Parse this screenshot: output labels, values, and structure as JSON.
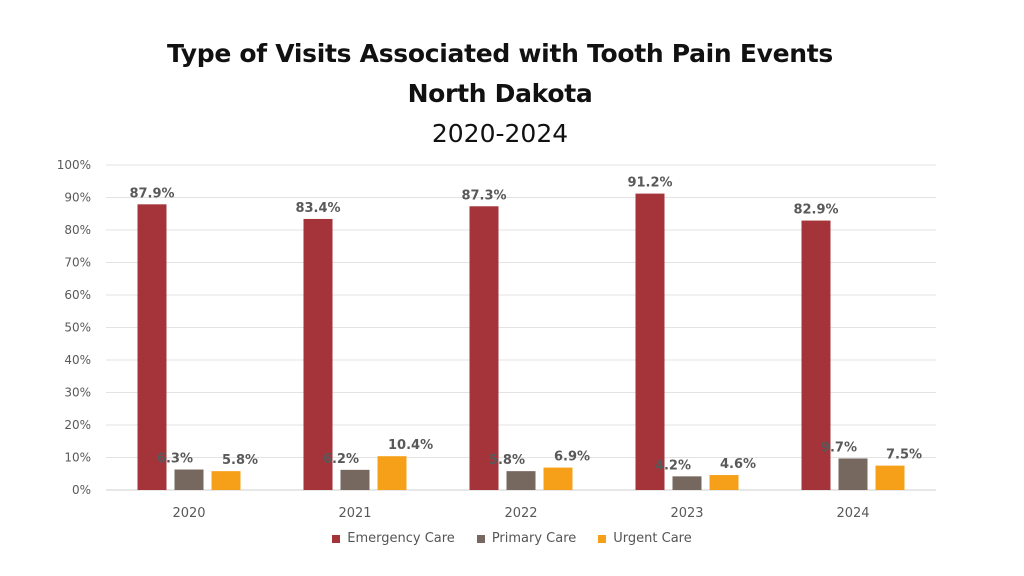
{
  "chart_data": {
    "type": "bar",
    "title": "Type of Visits Associated with Tooth Pain Events",
    "subtitle": "North Dakota",
    "subtitle2": "2020-2024",
    "categories": [
      "2020",
      "2021",
      "2022",
      "2023",
      "2024"
    ],
    "series": [
      {
        "name": "Emergency Care",
        "color": "#A4343A",
        "values": [
          87.9,
          83.4,
          87.3,
          91.2,
          82.9
        ],
        "labels": [
          "87.9%",
          "83.4%",
          "87.3%",
          "91.2%",
          "82.9%"
        ]
      },
      {
        "name": "Primary Care",
        "color": "#76675F",
        "values": [
          6.3,
          6.2,
          5.8,
          4.2,
          9.7
        ],
        "labels": [
          "6.3%",
          "6.2%",
          "5.8%",
          "4.2%",
          "9.7%"
        ]
      },
      {
        "name": "Urgent Care",
        "color": "#F6A01A",
        "values": [
          5.8,
          10.4,
          6.9,
          4.6,
          7.5
        ],
        "labels": [
          "5.8%",
          "10.4%",
          "6.9%",
          "4.6%",
          "7.5%"
        ]
      }
    ],
    "y_ticks": [
      "0%",
      "10%",
      "20%",
      "30%",
      "40%",
      "50%",
      "60%",
      "70%",
      "80%",
      "90%",
      "100%"
    ],
    "ylim": [
      0,
      100
    ],
    "grid": true,
    "legend_position": "bottom"
  }
}
